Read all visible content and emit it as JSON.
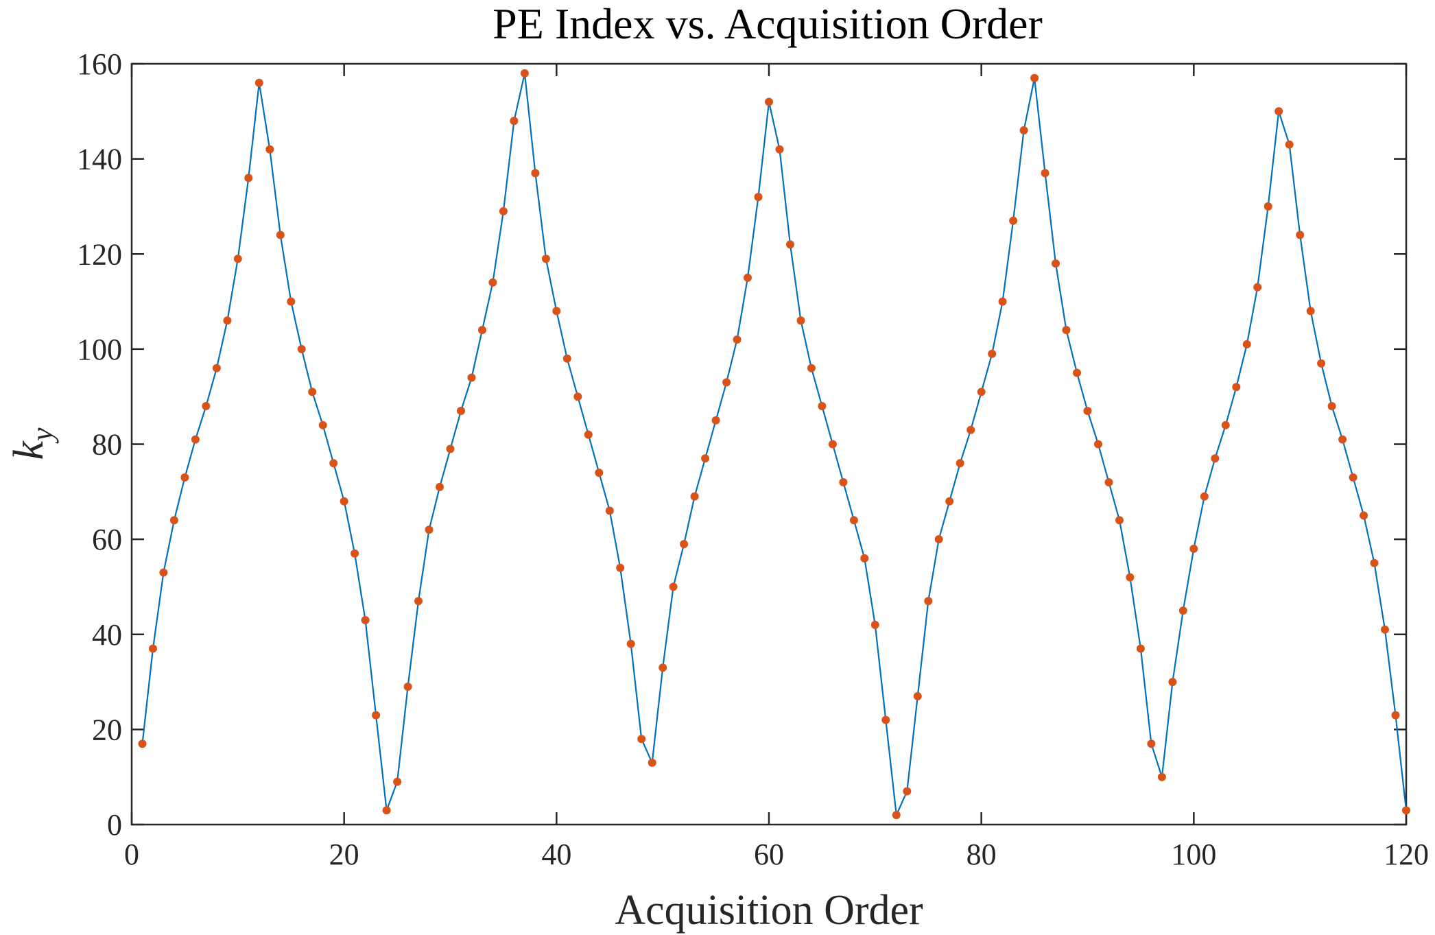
{
  "chart_data": {
    "type": "line",
    "title": "PE Index vs. Acquisition Order",
    "xlabel": "Acquisition Order",
    "ylabel": "k",
    "ylabel_subscript": "y",
    "xlim": [
      0,
      120
    ],
    "ylim": [
      0,
      160
    ],
    "xticks": [
      0,
      20,
      40,
      60,
      80,
      100,
      120
    ],
    "yticks": [
      0,
      20,
      40,
      60,
      80,
      100,
      120,
      140,
      160
    ],
    "grid": false,
    "colors": {
      "line": "#0072BD",
      "marker": "#D95319",
      "axis": "#262626"
    },
    "series": [
      {
        "x": [
          1,
          2,
          3,
          4,
          5,
          6,
          7,
          8,
          9,
          10,
          11,
          12,
          13,
          14,
          15,
          16,
          17,
          18,
          19,
          20,
          21,
          22,
          23,
          24,
          25,
          26,
          27,
          28,
          29,
          30,
          31,
          32,
          33,
          34,
          35,
          36,
          37,
          38,
          39,
          40,
          41,
          42,
          43,
          44,
          45,
          46,
          47,
          48,
          49,
          50,
          51,
          52,
          53,
          54,
          55,
          56,
          57,
          58,
          59,
          60,
          61,
          62,
          63,
          64,
          65,
          66,
          67,
          68,
          69,
          70,
          71,
          72,
          73,
          74,
          75,
          76,
          77,
          78,
          79,
          80,
          81,
          82,
          83,
          84,
          85,
          86,
          87,
          88,
          89,
          90,
          91,
          92,
          93,
          94,
          95,
          96,
          97,
          98,
          99,
          100,
          101,
          102,
          103,
          104,
          105,
          106,
          107,
          108,
          109,
          110,
          111,
          112,
          113,
          114,
          115,
          116,
          117,
          118,
          119,
          120
        ],
        "y": [
          17,
          37,
          53,
          64,
          73,
          81,
          88,
          96,
          106,
          119,
          136,
          156,
          142,
          124,
          110,
          100,
          91,
          84,
          76,
          68,
          57,
          43,
          23,
          3,
          9,
          29,
          47,
          62,
          71,
          79,
          87,
          94,
          104,
          114,
          129,
          148,
          158,
          137,
          119,
          108,
          98,
          90,
          82,
          74,
          66,
          54,
          38,
          18,
          13,
          33,
          50,
          59,
          69,
          77,
          85,
          93,
          102,
          115,
          132,
          152,
          142,
          122,
          106,
          96,
          88,
          80,
          72,
          64,
          56,
          42,
          22,
          2,
          7,
          27,
          47,
          60,
          68,
          76,
          83,
          91,
          99,
          110,
          127,
          146,
          157,
          137,
          118,
          104,
          95,
          87,
          80,
          72,
          64,
          52,
          37,
          17,
          10,
          30,
          45,
          58,
          69,
          77,
          84,
          92,
          101,
          113,
          130,
          150,
          143,
          124,
          108,
          97,
          88,
          81,
          73,
          65,
          55,
          41,
          23,
          3
        ]
      }
    ]
  }
}
